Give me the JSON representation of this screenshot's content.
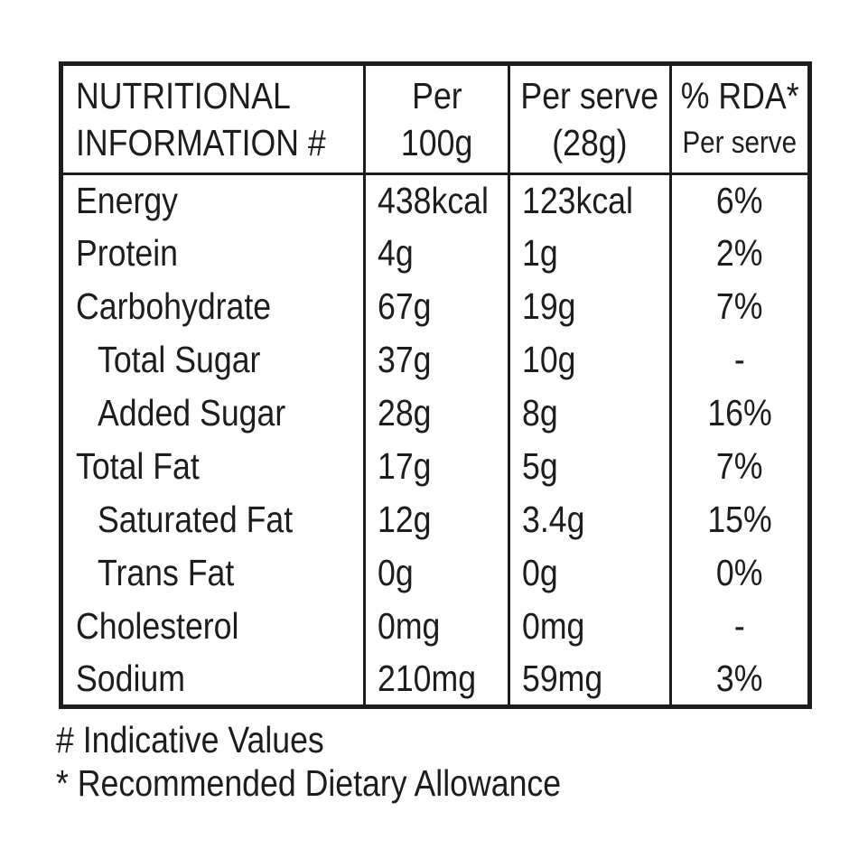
{
  "table": {
    "header": {
      "nutrient": [
        "NUTRITIONAL",
        "INFORMATION #"
      ],
      "per100g": [
        "Per",
        "100g"
      ],
      "perServe": [
        "Per serve",
        "(28g)"
      ],
      "rda": [
        "% RDA*",
        "Per serve"
      ]
    },
    "rows": [
      {
        "label": "Energy",
        "indent": false,
        "per100g": "438kcal",
        "perServe": "123kcal",
        "rda": "6%"
      },
      {
        "label": "Protein",
        "indent": false,
        "per100g": "4g",
        "perServe": "1g",
        "rda": "2%"
      },
      {
        "label": "Carbohydrate",
        "indent": false,
        "per100g": "67g",
        "perServe": "19g",
        "rda": "7%"
      },
      {
        "label": "Total Sugar",
        "indent": true,
        "per100g": "37g",
        "perServe": "10g",
        "rda": "-"
      },
      {
        "label": "Added Sugar",
        "indent": true,
        "per100g": "28g",
        "perServe": "8g",
        "rda": "16%"
      },
      {
        "label": "Total Fat",
        "indent": false,
        "per100g": "17g",
        "perServe": "5g",
        "rda": "7%"
      },
      {
        "label": "Saturated Fat",
        "indent": true,
        "per100g": "12g",
        "perServe": "3.4g",
        "rda": "15%"
      },
      {
        "label": "Trans Fat",
        "indent": true,
        "per100g": "0g",
        "perServe": "0g",
        "rda": "0%"
      },
      {
        "label": "Cholesterol",
        "indent": false,
        "per100g": "0mg",
        "perServe": "0mg",
        "rda": "-"
      },
      {
        "label": "Sodium",
        "indent": false,
        "per100g": "210mg",
        "perServe": "59mg",
        "rda": "3%"
      }
    ]
  },
  "footnotes": [
    "# Indicative Values",
    "* Recommended Dietary Allowance"
  ],
  "colors": {
    "text": "#1d1d1b",
    "border": "#1d1d1b",
    "background": "#ffffff"
  }
}
